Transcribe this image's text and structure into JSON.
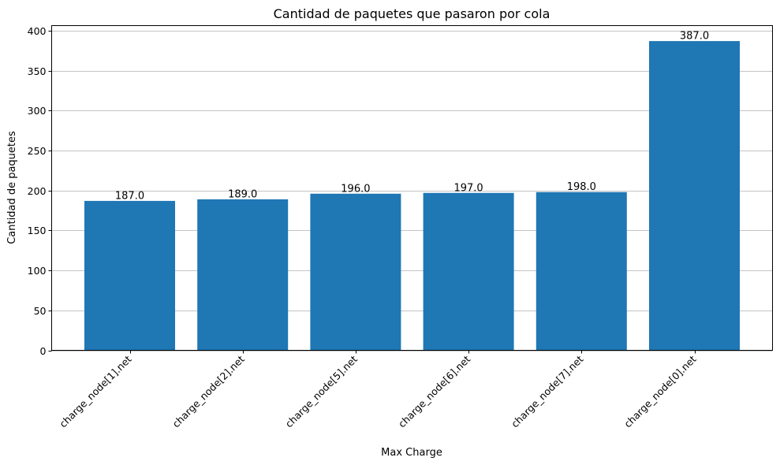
{
  "chart_data": {
    "type": "bar",
    "title": "Cantidad de paquetes que pasaron por cola",
    "xlabel": "Max Charge",
    "ylabel": "Cantidad de paquetes",
    "categories": [
      "charge_node[1].net",
      "charge_node[2].net",
      "charge_node[5].net",
      "charge_node[6].net",
      "charge_node[7].net",
      "charge_node[0].net"
    ],
    "values": [
      187.0,
      189.0,
      196.0,
      197.0,
      198.0,
      387.0
    ],
    "value_labels": [
      "187.0",
      "189.0",
      "196.0",
      "197.0",
      "198.0",
      "387.0"
    ],
    "ylim": [
      0,
      406.35
    ],
    "yticks": [
      0,
      50,
      100,
      150,
      200,
      250,
      300,
      350,
      400
    ],
    "grid": "y-axis only",
    "bar_color": "#1f77b4",
    "legend": "none"
  }
}
